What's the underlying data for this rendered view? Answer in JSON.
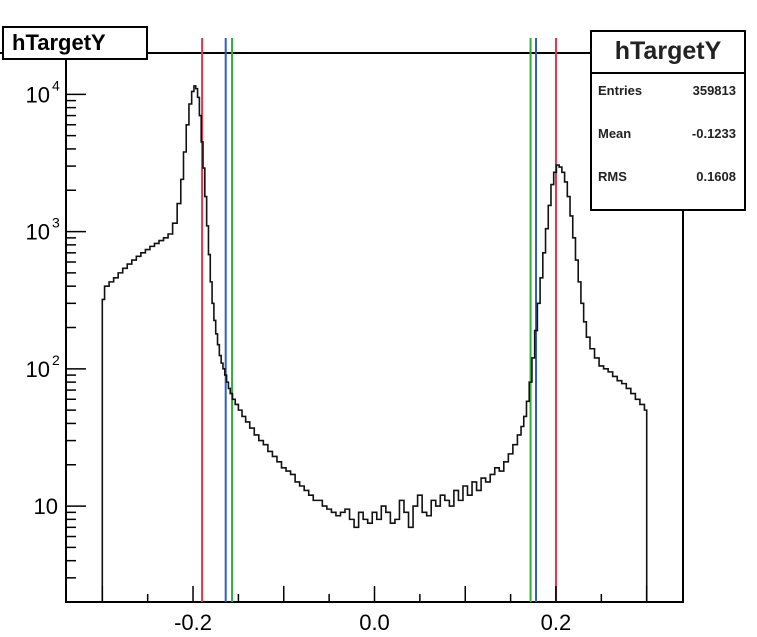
{
  "histogram_title": "hTargetY",
  "stats": {
    "title": "hTargetY",
    "rows": [
      {
        "label": "Entries",
        "value": "359813"
      },
      {
        "label": "Mean",
        "value": "-0.1233"
      },
      {
        "label": "RMS",
        "value": "0.1608"
      }
    ]
  },
  "chart_data": {
    "type": "line",
    "title": "hTargetY",
    "xlabel": "",
    "ylabel": "",
    "xlim": [
      -0.34,
      0.34
    ],
    "ylim": [
      2,
      20000
    ],
    "y_scale": "log",
    "grid": false,
    "x_ticks": [
      {
        "value": -0.2,
        "label": "-0.2"
      },
      {
        "value": 0.0,
        "label": "0.0"
      },
      {
        "value": 0.2,
        "label": "0.2"
      }
    ],
    "y_ticks": [
      {
        "value": 10,
        "label": "10",
        "sup": ""
      },
      {
        "value": 100,
        "label": "10",
        "sup": "2"
      },
      {
        "value": 1000,
        "label": "10",
        "sup": "3"
      },
      {
        "value": 10000,
        "label": "10",
        "sup": "4"
      }
    ],
    "series": [
      {
        "x": [
          -0.3,
          -0.295,
          -0.29,
          -0.285,
          -0.28,
          -0.275,
          -0.27,
          -0.265,
          -0.26,
          -0.255,
          -0.25,
          -0.245,
          -0.24,
          -0.235,
          -0.23,
          -0.225,
          -0.22,
          -0.215,
          -0.212,
          -0.209,
          -0.206,
          -0.203,
          -0.2,
          -0.198,
          -0.196,
          -0.194,
          -0.192,
          -0.19,
          -0.188,
          -0.186,
          -0.184,
          -0.182,
          -0.18,
          -0.178,
          -0.176,
          -0.174,
          -0.172,
          -0.17,
          -0.168,
          -0.166,
          -0.164,
          -0.162,
          -0.16,
          -0.158,
          -0.155,
          -0.152,
          -0.148,
          -0.144,
          -0.14,
          -0.135,
          -0.13,
          -0.125,
          -0.12,
          -0.115,
          -0.11,
          -0.105,
          -0.1,
          -0.095,
          -0.09,
          -0.085,
          -0.08,
          -0.075,
          -0.07,
          -0.065,
          -0.06,
          -0.055,
          -0.05,
          -0.045,
          -0.04,
          -0.035,
          -0.03,
          -0.025,
          -0.02,
          -0.015,
          -0.01,
          -0.005,
          0.0,
          0.005,
          0.01,
          0.015,
          0.02,
          0.025,
          0.03,
          0.035,
          0.04,
          0.045,
          0.05,
          0.055,
          0.06,
          0.065,
          0.07,
          0.075,
          0.08,
          0.085,
          0.09,
          0.095,
          0.1,
          0.105,
          0.11,
          0.115,
          0.12,
          0.125,
          0.13,
          0.135,
          0.14,
          0.145,
          0.15,
          0.155,
          0.16,
          0.163,
          0.166,
          0.169,
          0.172,
          0.175,
          0.178,
          0.181,
          0.184,
          0.187,
          0.19,
          0.193,
          0.196,
          0.199,
          0.202,
          0.205,
          0.208,
          0.211,
          0.214,
          0.217,
          0.22,
          0.223,
          0.226,
          0.229,
          0.232,
          0.235,
          0.24,
          0.245,
          0.25,
          0.255,
          0.26,
          0.265,
          0.27,
          0.275,
          0.28,
          0.285,
          0.29,
          0.295,
          0.3
        ],
        "y": [
          320,
          400,
          430,
          460,
          500,
          540,
          580,
          620,
          660,
          700,
          740,
          780,
          820,
          860,
          900,
          960,
          1150,
          1600,
          2400,
          3800,
          6000,
          8500,
          10500,
          11500,
          11000,
          9500,
          7000,
          4500,
          2900,
          1800,
          1100,
          680,
          430,
          300,
          225,
          180,
          150,
          125,
          110,
          100,
          90,
          80,
          72,
          66,
          60,
          55,
          50,
          45,
          41,
          37,
          33,
          30,
          28,
          25,
          23,
          21,
          19,
          18,
          17,
          15,
          14,
          13,
          12,
          11,
          11,
          10,
          9.5,
          9,
          8.5,
          9,
          9.5,
          8,
          7,
          9,
          8,
          7.5,
          9,
          8,
          10,
          9,
          7.5,
          8,
          11,
          9,
          7,
          10,
          12,
          9,
          8.5,
          11,
          10,
          12,
          11,
          10,
          13,
          11,
          14,
          12,
          15,
          13,
          16,
          15,
          17,
          19,
          18,
          21,
          24,
          28,
          33,
          38,
          45,
          58,
          80,
          120,
          190,
          300,
          460,
          700,
          1050,
          1550,
          2200,
          2700,
          3050,
          2950,
          2700,
          2300,
          1800,
          1300,
          900,
          620,
          430,
          300,
          220,
          170,
          140,
          120,
          105,
          100,
          95,
          88,
          82,
          78,
          72,
          66,
          60,
          55,
          50
        ]
      }
    ],
    "vertical_lines": [
      {
        "x": -0.19,
        "color": "#e8324a"
      },
      {
        "x": -0.164,
        "color": "#2e5fc0"
      },
      {
        "x": -0.157,
        "color": "#2fae3a"
      },
      {
        "x": 0.172,
        "color": "#2fae3a"
      },
      {
        "x": 0.178,
        "color": "#2e5fc0"
      },
      {
        "x": 0.2,
        "color": "#e8324a"
      }
    ],
    "line_color": "#111111"
  }
}
